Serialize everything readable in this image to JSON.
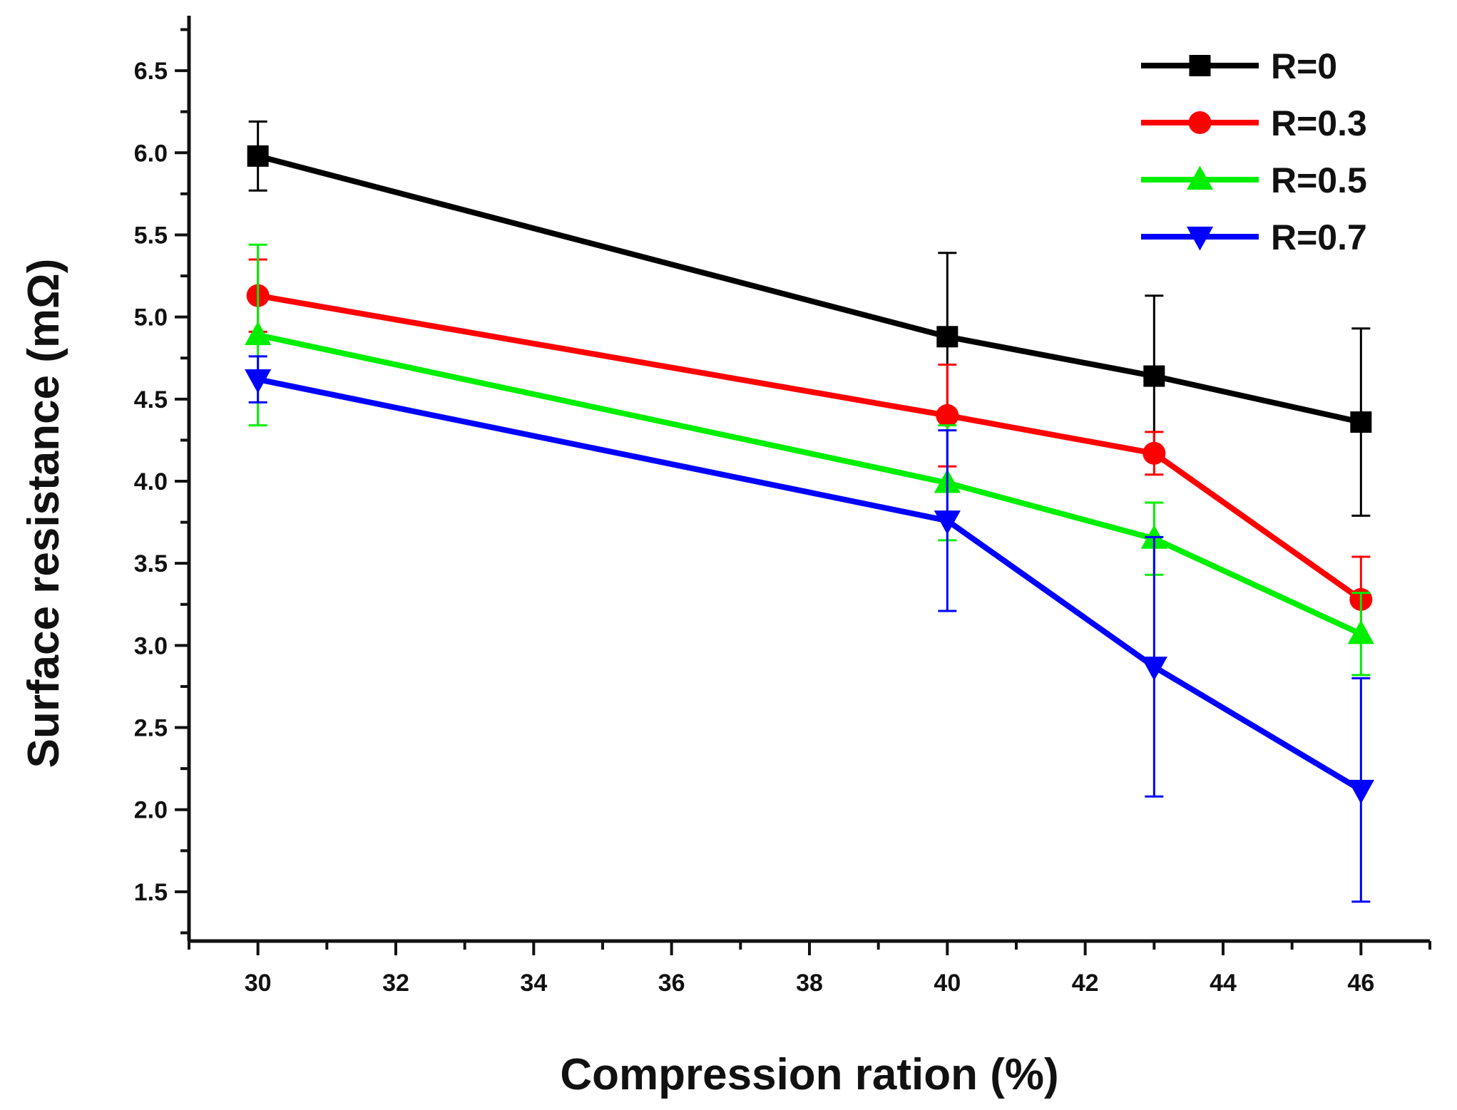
{
  "chart_data": {
    "type": "line",
    "title": "",
    "xlabel": "Compression ration (%)",
    "ylabel": "Surface resistance (mΩ)",
    "xlim": [
      29,
      47
    ],
    "ylim": [
      1.2,
      6.8
    ],
    "x_major_ticks": [
      30,
      32,
      34,
      36,
      38,
      40,
      42,
      44,
      46
    ],
    "x_tick_labels": [
      "30",
      "32",
      "34",
      "36",
      "38",
      "40",
      "42",
      "44",
      "46"
    ],
    "y_major_ticks": [
      1.5,
      2.0,
      2.5,
      3.0,
      3.5,
      4.0,
      4.5,
      5.0,
      5.5,
      6.0,
      6.5
    ],
    "y_tick_labels": [
      "1.5",
      "2.0",
      "2.5",
      "3.0",
      "3.5",
      "4.0",
      "4.5",
      "5.0",
      "5.5",
      "6.0",
      "6.5"
    ],
    "grid": false,
    "legend_position": "top-right",
    "x": [
      30,
      40,
      43,
      46
    ],
    "series": [
      {
        "name": "R=0",
        "color": "#000000",
        "marker": "square",
        "values": [
          5.98,
          4.88,
          4.64,
          4.36
        ],
        "error": [
          0.21,
          0.51,
          0.49,
          0.57
        ]
      },
      {
        "name": "R=0.3",
        "color": "#ff0000",
        "marker": "circle",
        "values": [
          5.13,
          4.4,
          4.17,
          3.28
        ],
        "error": [
          0.22,
          0.31,
          0.13,
          0.26
        ]
      },
      {
        "name": "R=0.5",
        "color": "#00ee00",
        "marker": "triangle-up",
        "values": [
          4.89,
          3.99,
          3.65,
          3.07
        ],
        "error": [
          0.55,
          0.35,
          0.22,
          0.25
        ]
      },
      {
        "name": "R=0.7",
        "color": "#0000ff",
        "marker": "triangle-down",
        "values": [
          4.62,
          3.76,
          2.87,
          2.12
        ],
        "error": [
          0.14,
          0.55,
          0.79,
          0.68
        ]
      }
    ]
  }
}
